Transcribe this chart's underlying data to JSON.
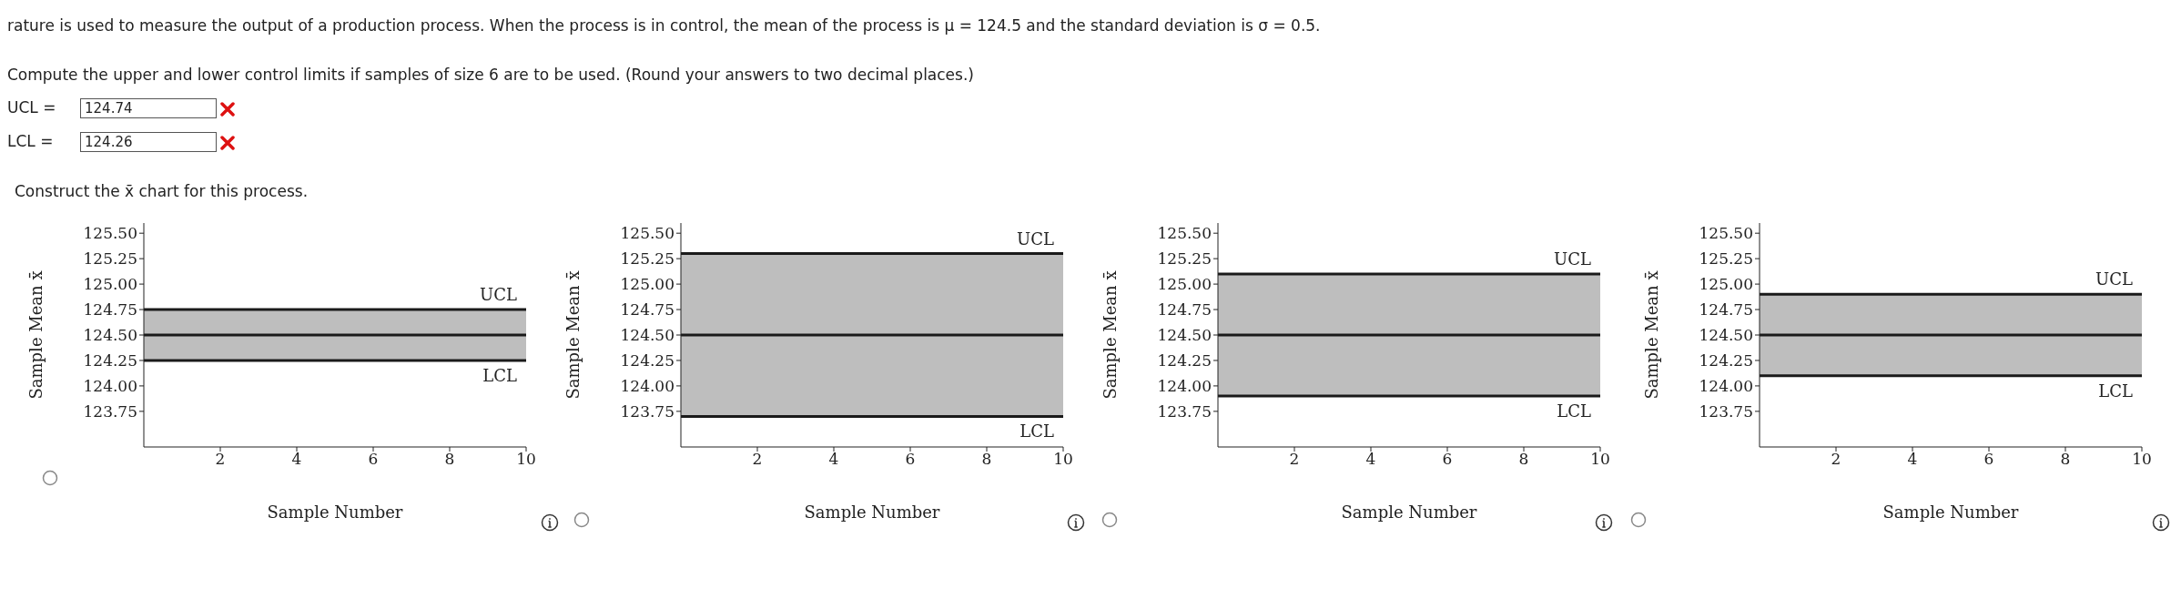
{
  "chart_data": [
    {
      "type": "line",
      "annotations": [
        "rature is used to measure the output of a production process. When the process is in control, the mean of the process is μ = 124.5 and the standard deviation is σ = 0.5.",
        "Compute the upper and lower control limits if samples of size 6 are to be used. (Round your answers to two decimal places.)",
        "UCL =",
        "124.74",
        "LCL =",
        "124.26",
        "Construct the x̄ chart for this process."
      ],
      "xlabel": "Sample Number",
      "ylabel": "Sample Mean x̄",
      "xlim": [
        0,
        10
      ],
      "xticks": [
        2,
        4,
        6,
        8,
        10
      ],
      "ylim": [
        123.4,
        125.6
      ],
      "yticks": [
        {
          "value": 123.75,
          "label": "123.75"
        },
        {
          "value": 124,
          "label": "124.00"
        },
        {
          "value": 124.25,
          "label": "124.25"
        },
        {
          "value": 124.5,
          "label": "124.50"
        },
        {
          "value": 124.75,
          "label": "124.75"
        },
        {
          "value": 125,
          "label": "125.00"
        },
        {
          "value": 125.25,
          "label": "125.25"
        },
        {
          "value": 125.5,
          "label": "125.50"
        }
      ],
      "ref_lines": [
        {
          "axis": "y",
          "value": 124.75,
          "label": "UCL",
          "color": "#1a1a1a"
        },
        {
          "axis": "y",
          "value": 124.5,
          "color": "#1a1a1a"
        },
        {
          "axis": "y",
          "value": 124.25,
          "label": "LCL",
          "color": "#1a1a1a"
        }
      ],
      "bands": [
        {
          "axis": "y",
          "from": 124.25,
          "to": 124.75,
          "color": "#a8a8a8"
        }
      ]
    },
    {
      "type": "line",
      "xlabel": "Sample Number",
      "ylabel": "Sample Mean x̄",
      "xlim": [
        0,
        10
      ],
      "xticks": [
        2,
        4,
        6,
        8,
        10
      ],
      "ylim": [
        123.4,
        125.6
      ],
      "yticks": [
        {
          "value": 123.75,
          "label": "123.75"
        },
        {
          "value": 124,
          "label": "124.00"
        },
        {
          "value": 124.25,
          "label": "124.25"
        },
        {
          "value": 124.5,
          "label": "124.50"
        },
        {
          "value": 124.75,
          "label": "124.75"
        },
        {
          "value": 125,
          "label": "125.00"
        },
        {
          "value": 125.25,
          "label": "125.25"
        },
        {
          "value": 125.5,
          "label": "125.50"
        }
      ],
      "ref_lines": [
        {
          "axis": "y",
          "value": 125.3,
          "label": "UCL",
          "color": "#1a1a1a"
        },
        {
          "axis": "y",
          "value": 124.5,
          "color": "#1a1a1a"
        },
        {
          "axis": "y",
          "value": 123.7,
          "label": "LCL",
          "color": "#1a1a1a"
        }
      ],
      "bands": [
        {
          "axis": "y",
          "from": 123.7,
          "to": 125.3,
          "color": "#a8a8a8"
        }
      ]
    },
    {
      "type": "line",
      "xlabel": "Sample Number",
      "ylabel": "Sample Mean x̄",
      "xlim": [
        0,
        10
      ],
      "xticks": [
        2,
        4,
        6,
        8,
        10
      ],
      "ylim": [
        123.4,
        125.6
      ],
      "yticks": [
        {
          "value": 123.75,
          "label": "123.75"
        },
        {
          "value": 124,
          "label": "124.00"
        },
        {
          "value": 124.25,
          "label": "124.25"
        },
        {
          "value": 124.5,
          "label": "124.50"
        },
        {
          "value": 124.75,
          "label": "124.75"
        },
        {
          "value": 125,
          "label": "125.00"
        },
        {
          "value": 125.25,
          "label": "125.25"
        },
        {
          "value": 125.5,
          "label": "125.50"
        }
      ],
      "ref_lines": [
        {
          "axis": "y",
          "value": 125.1,
          "label": "UCL",
          "color": "#1a1a1a"
        },
        {
          "axis": "y",
          "value": 124.5,
          "color": "#1a1a1a"
        },
        {
          "axis": "y",
          "value": 123.9,
          "label": "LCL",
          "color": "#1a1a1a"
        }
      ],
      "bands": [
        {
          "axis": "y",
          "from": 123.9,
          "to": 125.1,
          "color": "#a8a8a8"
        }
      ]
    },
    {
      "type": "line",
      "xlabel": "Sample Number",
      "ylabel": "Sample Mean x̄",
      "xlim": [
        0,
        10
      ],
      "xticks": [
        2,
        4,
        6,
        8,
        10
      ],
      "ylim": [
        123.4,
        125.6
      ],
      "yticks": [
        {
          "value": 123.75,
          "label": "123.75"
        },
        {
          "value": 124,
          "label": "124.00"
        },
        {
          "value": 124.25,
          "label": "124.25"
        },
        {
          "value": 124.5,
          "label": "124.50"
        },
        {
          "value": 124.75,
          "label": "124.75"
        },
        {
          "value": 125,
          "label": "125.00"
        },
        {
          "value": 125.25,
          "label": "125.25"
        },
        {
          "value": 125.5,
          "label": "125.50"
        }
      ],
      "ref_lines": [
        {
          "axis": "y",
          "value": 124.9,
          "label": "UCL",
          "color": "#1a1a1a"
        },
        {
          "axis": "y",
          "value": 124.5,
          "color": "#1a1a1a"
        },
        {
          "axis": "y",
          "value": 124.1,
          "label": "LCL",
          "color": "#1a1a1a"
        }
      ],
      "bands": [
        {
          "axis": "y",
          "from": 124.1,
          "to": 124.9,
          "color": "#a8a8a8"
        }
      ]
    }
  ]
}
